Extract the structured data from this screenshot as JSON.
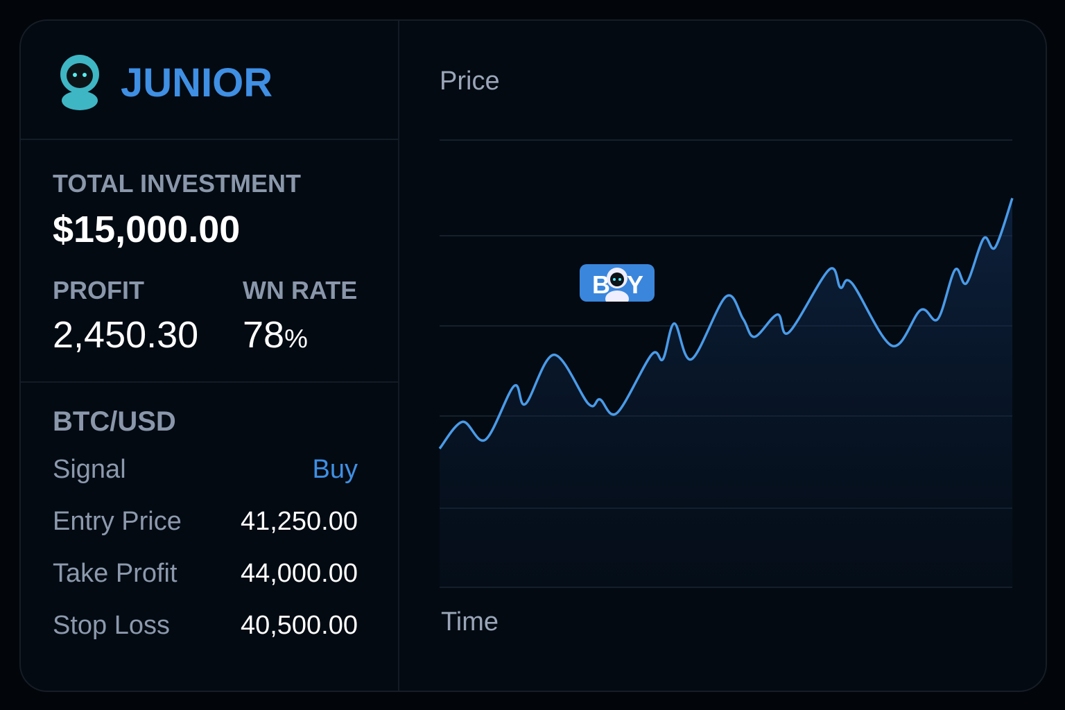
{
  "brand": {
    "name": "JUNIOR",
    "logo": "robot-mascot"
  },
  "stats": {
    "total_investment_label": "TOTAL INVESTMENT",
    "total_investment": "$15,000.00",
    "profit_label": "PROFIT",
    "profit": "2,450.30",
    "win_rate_label": "WN RATE",
    "win_rate": "78",
    "win_rate_unit": "%"
  },
  "signal": {
    "pair": "BTC/USD",
    "rows": [
      {
        "label": "Signal",
        "value": "Buy"
      },
      {
        "label": "Entry Price",
        "value": "41,250.00"
      },
      {
        "label": "Take Profit",
        "value": "44,000.00"
      },
      {
        "label": "Stop Loss",
        "value": "40,500.00"
      }
    ]
  },
  "colors": {
    "accent": "#3f8fe4",
    "line": "#4a9be8",
    "background": "#030a12"
  },
  "chart_data": {
    "type": "area",
    "ylabel": "Price",
    "xlabel": "Time",
    "grid": true,
    "x": [
      0,
      4,
      8,
      13,
      15,
      20,
      26,
      28,
      31,
      37,
      39,
      41,
      44,
      50,
      53,
      55,
      59,
      61,
      68,
      70,
      72,
      79,
      84,
      87,
      90,
      92,
      95,
      97,
      100
    ],
    "y": [
      31,
      37,
      33,
      45,
      41,
      52,
      41,
      42,
      39,
      52,
      51,
      59,
      51,
      65,
      60,
      56,
      61,
      57,
      71,
      67,
      68,
      54,
      62,
      60,
      71,
      68,
      78,
      76,
      87
    ],
    "xlim": [
      0,
      100
    ],
    "ylim": [
      0,
      100
    ],
    "annotation": {
      "x": 31,
      "label_left": "B",
      "label_right": "Y"
    }
  }
}
